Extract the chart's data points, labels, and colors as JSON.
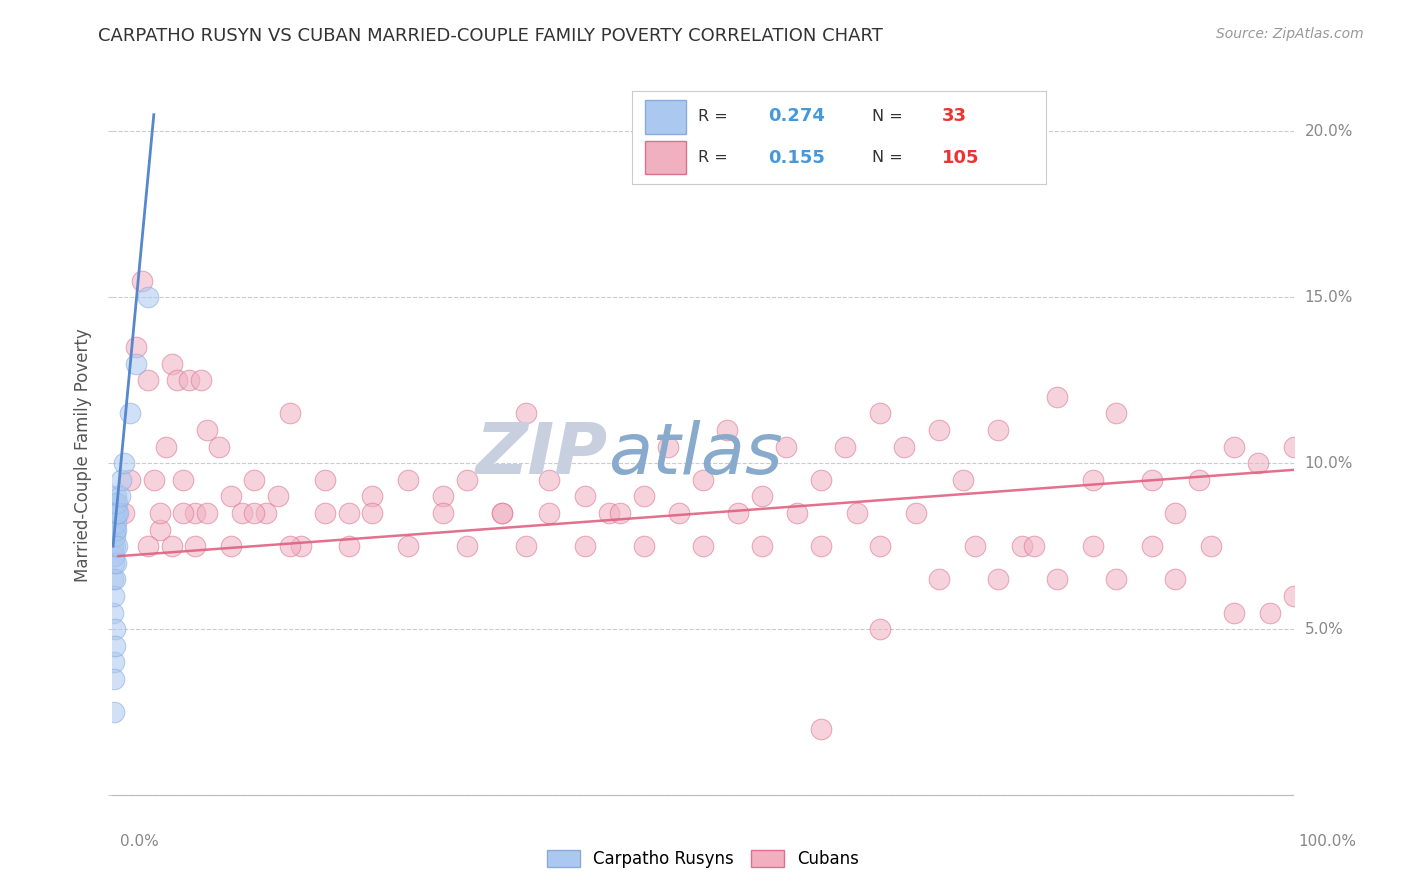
{
  "title": "CARPATHO RUSYN VS CUBAN MARRIED-COUPLE FAMILY POVERTY CORRELATION CHART",
  "source": "Source: ZipAtlas.com",
  "ylabel": "Married-Couple Family Poverty",
  "xlim": [
    0,
    100
  ],
  "ylim": [
    -0.5,
    21
  ],
  "ytick_vals": [
    0,
    5,
    10,
    15,
    20
  ],
  "ytick_labels": [
    "",
    "5.0%",
    "10.0%",
    "15.0%",
    "20.0%"
  ],
  "watermark_zip": "ZIP",
  "watermark_atlas": "atlas",
  "legend": {
    "R_blue": "0.274",
    "N_blue": "33",
    "R_pink": "0.155",
    "N_pink": "105"
  },
  "blue_x": [
    0.05,
    0.05,
    0.08,
    0.08,
    0.1,
    0.1,
    0.12,
    0.12,
    0.15,
    0.15,
    0.15,
    0.18,
    0.18,
    0.2,
    0.2,
    0.22,
    0.22,
    0.25,
    0.25,
    0.28,
    0.28,
    0.3,
    0.3,
    0.35,
    0.35,
    0.4,
    0.5,
    0.6,
    0.7,
    1.0,
    1.5,
    2.0,
    3.0
  ],
  "blue_y": [
    7.5,
    6.5,
    8.0,
    5.5,
    7.0,
    4.0,
    8.5,
    3.5,
    7.2,
    6.0,
    2.5,
    8.0,
    5.0,
    8.5,
    4.5,
    8.8,
    7.5,
    7.8,
    6.5,
    8.2,
    7.0,
    9.0,
    8.0,
    8.5,
    7.5,
    8.8,
    8.5,
    9.0,
    9.5,
    10.0,
    11.5,
    13.0,
    15.0
  ],
  "pink_x": [
    1.0,
    1.5,
    2.0,
    2.5,
    3.0,
    3.5,
    4.0,
    4.5,
    5.0,
    5.5,
    6.0,
    6.5,
    7.0,
    7.5,
    8.0,
    9.0,
    10.0,
    11.0,
    12.0,
    13.0,
    14.0,
    15.0,
    16.0,
    18.0,
    20.0,
    22.0,
    25.0,
    28.0,
    30.0,
    33.0,
    35.0,
    37.0,
    40.0,
    42.0,
    45.0,
    47.0,
    50.0,
    52.0,
    55.0,
    57.0,
    60.0,
    62.0,
    65.0,
    67.0,
    70.0,
    72.0,
    75.0,
    77.0,
    80.0,
    83.0,
    85.0,
    88.0,
    90.0,
    92.0,
    95.0,
    97.0,
    100.0,
    3.0,
    4.0,
    5.0,
    6.0,
    7.0,
    8.0,
    10.0,
    12.0,
    15.0,
    18.0,
    20.0,
    22.0,
    25.0,
    28.0,
    30.0,
    33.0,
    35.0,
    37.0,
    40.0,
    43.0,
    45.0,
    48.0,
    50.0,
    53.0,
    55.0,
    58.0,
    60.0,
    63.0,
    65.0,
    68.0,
    70.0,
    73.0,
    75.0,
    78.0,
    80.0,
    83.0,
    85.0,
    88.0,
    90.0,
    93.0,
    95.0,
    98.0,
    100.0,
    60.0,
    65.0
  ],
  "pink_y": [
    8.5,
    9.5,
    13.5,
    15.5,
    12.5,
    9.5,
    8.0,
    10.5,
    13.0,
    12.5,
    9.5,
    12.5,
    8.5,
    12.5,
    11.0,
    10.5,
    9.0,
    8.5,
    9.5,
    8.5,
    9.0,
    11.5,
    7.5,
    9.5,
    8.5,
    9.0,
    9.5,
    9.0,
    9.5,
    8.5,
    11.5,
    9.5,
    9.0,
    8.5,
    9.0,
    10.5,
    9.5,
    11.0,
    9.0,
    10.5,
    9.5,
    10.5,
    11.5,
    10.5,
    11.0,
    9.5,
    11.0,
    7.5,
    12.0,
    9.5,
    11.5,
    9.5,
    8.5,
    9.5,
    10.5,
    10.0,
    10.5,
    7.5,
    8.5,
    7.5,
    8.5,
    7.5,
    8.5,
    7.5,
    8.5,
    7.5,
    8.5,
    7.5,
    8.5,
    7.5,
    8.5,
    7.5,
    8.5,
    7.5,
    8.5,
    7.5,
    8.5,
    7.5,
    8.5,
    7.5,
    8.5,
    7.5,
    8.5,
    7.5,
    8.5,
    7.5,
    8.5,
    6.5,
    7.5,
    6.5,
    7.5,
    6.5,
    7.5,
    6.5,
    7.5,
    6.5,
    7.5,
    5.5,
    5.5,
    6.0,
    2.0,
    5.0
  ],
  "blue_line_x": [
    0.05,
    3.5
  ],
  "blue_line_y": [
    7.5,
    20.5
  ],
  "pink_line_x": [
    0.5,
    100.0
  ],
  "pink_line_y": [
    7.2,
    9.8
  ],
  "colors": {
    "blue_scatter_face": "#aac8f0",
    "blue_scatter_edge": "#88aadd",
    "blue_line": "#5588cc",
    "pink_scatter_face": "#f0b0c0",
    "pink_scatter_edge": "#dd7090",
    "pink_line": "#e06080",
    "grid": "#cccccc",
    "title": "#333333",
    "source": "#999999",
    "watermark_zip": "#c8d0e0",
    "watermark_atlas": "#88aacc",
    "legend_text": "#333333",
    "legend_R_val": "#4499dd",
    "legend_N_val": "#ee3333",
    "legend_border": "#cccccc",
    "ytick": "#888888",
    "ylabel": "#555555"
  },
  "background": "#ffffff"
}
